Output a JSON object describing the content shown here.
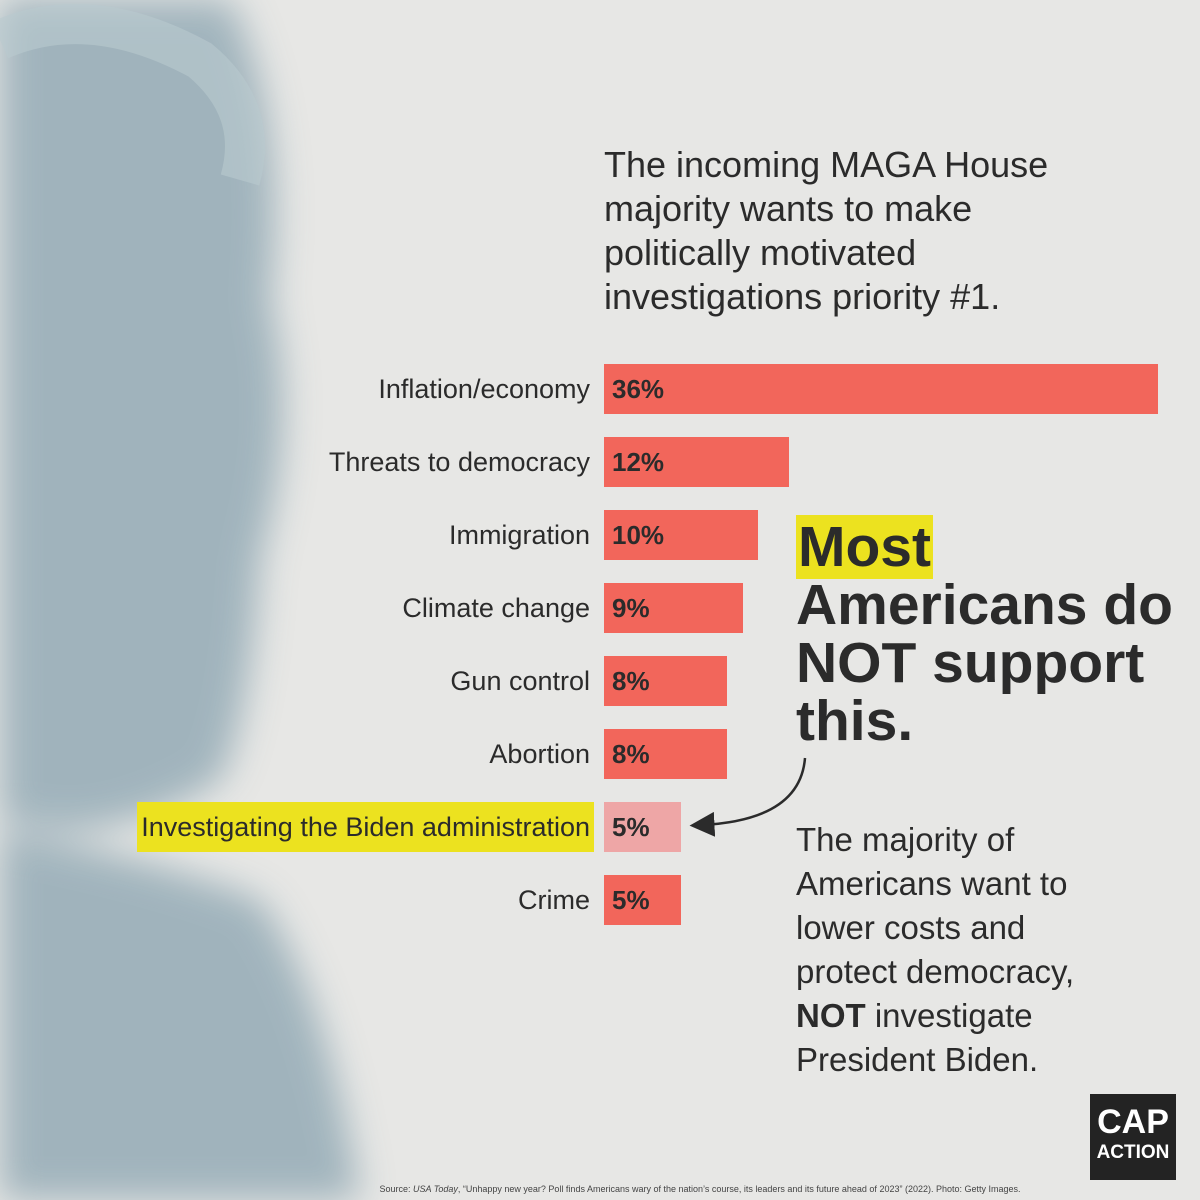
{
  "chart_data": {
    "type": "bar",
    "orientation": "horizontal",
    "title": "The incoming MAGA House majority wants to make politically motivated investigations priority #1.",
    "categories": [
      "Inflation/economy",
      "Threats to democracy",
      "Immigration",
      "Climate change",
      "Gun control",
      "Abortion",
      "Investigating the Biden administration",
      "Crime"
    ],
    "values": [
      36,
      12,
      10,
      9,
      8,
      8,
      5,
      5
    ],
    "value_labels": [
      "36%",
      "12%",
      "10%",
      "9%",
      "8%",
      "8%",
      "5%",
      "5%"
    ],
    "colors": [
      "#f2665b",
      "#f2665b",
      "#f2665b",
      "#f2665b",
      "#f2665b",
      "#f2665b",
      "#eea6a6",
      "#f2665b"
    ],
    "highlighted_categories": [
      6
    ],
    "highlight_color": "#ece21f",
    "callout": {
      "highlight": "Most",
      "text": "Americans do NOT support this."
    },
    "note": {
      "before": "The majority of Americans want to lower costs and protect democracy,",
      "bold": "NOT",
      "after": "investigate President Biden."
    },
    "logo": {
      "line1": "CAP",
      "line2": "ACTION"
    },
    "source": {
      "prefix": "Source:",
      "publication": "USA Today",
      "rest": ", “Unhappy new year? Poll finds Americans wary of the nation’s course, its leaders and its future ahead of 2023” (2022). Photo: Getty Images."
    }
  }
}
